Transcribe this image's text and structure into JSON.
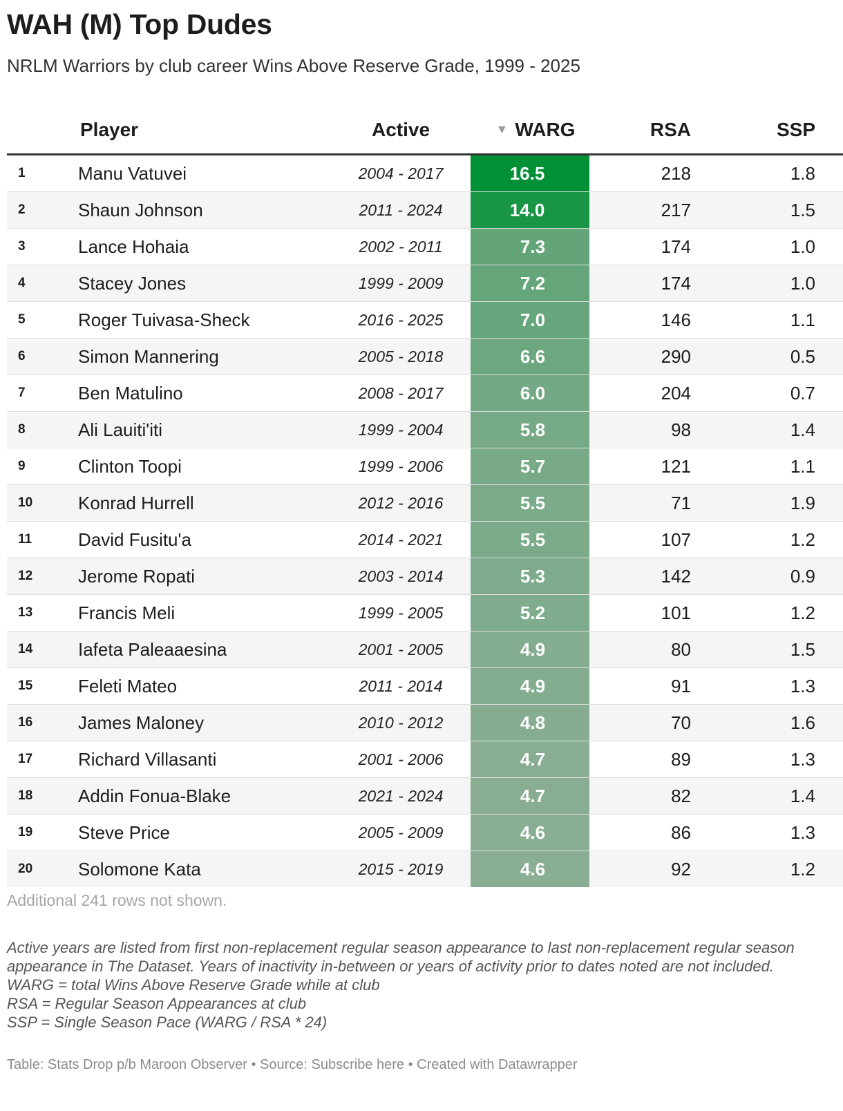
{
  "title": "WAH (M) Top Dudes",
  "subtitle": "NRLM Warriors by club career Wins Above Reserve Grade, 1999 - 2025",
  "table": {
    "headers": {
      "player": "Player",
      "active": "Active",
      "warg": "WARG",
      "warg_sort_icon": "sort-descending-icon",
      "rsa": "RSA",
      "ssp": "SSP"
    },
    "more_rows": "Additional 241 rows not shown."
  },
  "chart_data": {
    "type": "table",
    "title": "WAH (M) Top Dudes",
    "subtitle": "NRLM Warriors by club career Wins Above Reserve Grade, 1999 - 2025",
    "columns": [
      "",
      "Player",
      "Active",
      "WARG",
      "RSA",
      "SSP"
    ],
    "sorted_by": "WARG",
    "sort_order": "descending",
    "warg_color_scale": [
      "#8aae94",
      "#009035"
    ],
    "rows": [
      {
        "rank": "1",
        "player": "Manu Vatuvei",
        "active": "2004 - 2017",
        "warg": "16.5",
        "rsa": "218",
        "ssp": "1.8"
      },
      {
        "rank": "2",
        "player": "Shaun Johnson",
        "active": "2011 - 2024",
        "warg": "14.0",
        "rsa": "217",
        "ssp": "1.5"
      },
      {
        "rank": "3",
        "player": "Lance Hohaia",
        "active": "2002 - 2011",
        "warg": "7.3",
        "rsa": "174",
        "ssp": "1.0"
      },
      {
        "rank": "4",
        "player": "Stacey Jones",
        "active": "1999 - 2009",
        "warg": "7.2",
        "rsa": "174",
        "ssp": "1.0"
      },
      {
        "rank": "5",
        "player": "Roger Tuivasa-Sheck",
        "active": "2016 - 2025",
        "warg": "7.0",
        "rsa": "146",
        "ssp": "1.1"
      },
      {
        "rank": "6",
        "player": "Simon Mannering",
        "active": "2005 - 2018",
        "warg": "6.6",
        "rsa": "290",
        "ssp": "0.5"
      },
      {
        "rank": "7",
        "player": "Ben Matulino",
        "active": "2008 - 2017",
        "warg": "6.0",
        "rsa": "204",
        "ssp": "0.7"
      },
      {
        "rank": "8",
        "player": "Ali Lauiti'iti",
        "active": "1999 - 2004",
        "warg": "5.8",
        "rsa": "98",
        "ssp": "1.4"
      },
      {
        "rank": "9",
        "player": "Clinton Toopi",
        "active": "1999 - 2006",
        "warg": "5.7",
        "rsa": "121",
        "ssp": "1.1"
      },
      {
        "rank": "10",
        "player": "Konrad Hurrell",
        "active": "2012 - 2016",
        "warg": "5.5",
        "rsa": "71",
        "ssp": "1.9"
      },
      {
        "rank": "11",
        "player": "David Fusitu'a",
        "active": "2014 - 2021",
        "warg": "5.5",
        "rsa": "107",
        "ssp": "1.2"
      },
      {
        "rank": "12",
        "player": "Jerome Ropati",
        "active": "2003 - 2014",
        "warg": "5.3",
        "rsa": "142",
        "ssp": "0.9"
      },
      {
        "rank": "13",
        "player": "Francis Meli",
        "active": "1999 - 2005",
        "warg": "5.2",
        "rsa": "101",
        "ssp": "1.2"
      },
      {
        "rank": "14",
        "player": "Iafeta Paleaaesina",
        "active": "2001 - 2005",
        "warg": "4.9",
        "rsa": "80",
        "ssp": "1.5"
      },
      {
        "rank": "15",
        "player": "Feleti Mateo",
        "active": "2011 - 2014",
        "warg": "4.9",
        "rsa": "91",
        "ssp": "1.3"
      },
      {
        "rank": "16",
        "player": "James Maloney",
        "active": "2010 - 2012",
        "warg": "4.8",
        "rsa": "70",
        "ssp": "1.6"
      },
      {
        "rank": "17",
        "player": "Richard Villasanti",
        "active": "2001 - 2006",
        "warg": "4.7",
        "rsa": "89",
        "ssp": "1.3"
      },
      {
        "rank": "18",
        "player": "Addin Fonua-Blake",
        "active": "2021 - 2024",
        "warg": "4.7",
        "rsa": "82",
        "ssp": "1.4"
      },
      {
        "rank": "19",
        "player": "Steve Price",
        "active": "2005 - 2009",
        "warg": "4.6",
        "rsa": "86",
        "ssp": "1.3"
      },
      {
        "rank": "20",
        "player": "Solomone Kata",
        "active": "2015 - 2019",
        "warg": "4.6",
        "rsa": "92",
        "ssp": "1.2"
      }
    ]
  },
  "notes": {
    "line1": "Active years are listed from first non-replacement regular season appearance to last non-replacement regular season appearance in The Dataset. Years of inactivity in-between or years of activity prior to dates noted are not included.",
    "line2": "WARG = total Wins Above Reserve Grade while at club",
    "line3": "RSA = Regular Season Appearances at club",
    "line4": "SSP = Single Season Pace (WARG / RSA * 24)"
  },
  "footer": "Table: Stats Drop p/b Maroon Observer • Source: Subscribe here • Created with Datawrapper"
}
